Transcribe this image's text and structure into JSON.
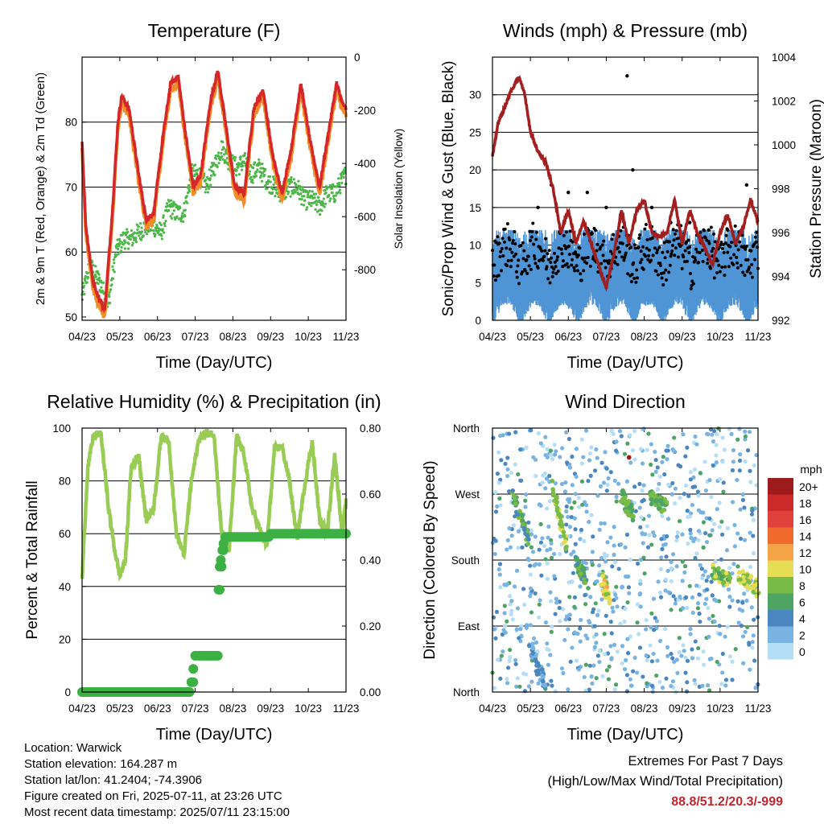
{
  "panels": {
    "temperature": {
      "title": "Temperature (F)",
      "ylabel_left": "2m & 9m T (Red, Orange) & 2m Td (Green)",
      "ylabel_right": "Solar Insolation (Yellow)",
      "xlabel": "Time (Day/UTC)"
    },
    "winds": {
      "title": "Winds (mph) & Pressure (mb)",
      "ylabel_left": "Sonic/Prop Wind & Gust (Blue, Black)",
      "ylabel_right": "Station Pressure (Maroon)",
      "xlabel": "Time (Day/UTC)"
    },
    "humidity": {
      "title": "Relative Humidity (%) & Precipitation (in)",
      "ylabel_left": "Percent & Total Rainfall",
      "xlabel": "Time (Day/UTC)"
    },
    "direction": {
      "title": "Wind Direction",
      "ylabel_left": "Direction (Colored By Speed)",
      "xlabel": "Time (Day/UTC)",
      "legend_title": "mph"
    }
  },
  "chart_data": [
    {
      "type": "line",
      "title": "Temperature (F)",
      "xlabel": "Time (Day/UTC)",
      "ylabel": "2m & 9m T (Red, Orange) & 2m Td (Green)",
      "y2label": "Solar Insolation (Yellow)",
      "x_ticks": [
        "04/23",
        "05/23",
        "06/23",
        "07/23",
        "08/23",
        "09/23",
        "10/23",
        "11/23"
      ],
      "ylim": [
        49.5,
        90
      ],
      "y_ticks": [
        50,
        60,
        70,
        80
      ],
      "y2lim": [
        -990,
        0
      ],
      "y2_ticks": [
        0,
        -200,
        -400,
        -600,
        -800
      ],
      "grid": true,
      "colors": {
        "t2m": "#d62728",
        "t9m": "#f28c28",
        "td2m": "#4cb648"
      },
      "series": [
        {
          "name": "2m T",
          "x": [
            0,
            0.1,
            0.3,
            0.6,
            0.8,
            0.95,
            1.05,
            1.25,
            1.5,
            1.7,
            1.9,
            2.15,
            2.35,
            2.55,
            2.75,
            2.95,
            3.15,
            3.4,
            3.6,
            3.8,
            4.05,
            4.3,
            4.55,
            4.8,
            5.05,
            5.3,
            5.55,
            5.8,
            6.05,
            6.3,
            6.55,
            6.75,
            6.9,
            7
          ],
          "y": [
            77,
            64,
            55,
            51,
            66,
            80,
            84,
            82,
            72,
            65,
            66,
            78,
            86,
            87,
            78,
            70,
            72,
            83,
            88,
            80,
            70,
            69,
            82,
            85,
            75,
            69,
            76,
            86,
            77,
            70,
            79,
            86,
            83,
            82
          ]
        },
        {
          "name": "2m Td",
          "x": [
            0,
            0.2,
            0.5,
            0.7,
            0.9,
            1.1,
            1.3,
            1.5,
            1.7,
            1.9,
            2.1,
            2.3,
            2.5,
            2.7,
            2.9,
            3.1,
            3.3,
            3.5,
            3.7,
            3.9,
            4.1,
            4.3,
            4.5,
            4.7,
            4.9,
            5.1,
            5.3,
            5.5,
            5.7,
            5.9,
            6.1,
            6.3,
            6.5,
            6.7,
            6.9,
            7
          ],
          "y": [
            53,
            58,
            55,
            52,
            60,
            62,
            62,
            63,
            64,
            64,
            63,
            67,
            66,
            66,
            72,
            72,
            70,
            73,
            76,
            74,
            73,
            74,
            72,
            73,
            71,
            70,
            69,
            70,
            70,
            68,
            68,
            67,
            69,
            69,
            71,
            72
          ]
        }
      ]
    },
    {
      "type": "line",
      "title": "Winds (mph) & Pressure (mb)",
      "xlabel": "Time (Day/UTC)",
      "ylabel": "Sonic/Prop Wind & Gust (Blue, Black)",
      "y2label": "Station Pressure (Maroon)",
      "x_ticks": [
        "04/23",
        "05/23",
        "06/23",
        "07/23",
        "08/23",
        "09/23",
        "10/23",
        "11/23"
      ],
      "ylim": [
        0,
        35
      ],
      "y_ticks": [
        0,
        5,
        10,
        15,
        20,
        25,
        30
      ],
      "y2lim": [
        992,
        1004
      ],
      "y2_ticks": [
        992,
        994,
        996,
        998,
        1000,
        1002,
        1004
      ],
      "grid": true,
      "colors": {
        "wind": "#4f94d4",
        "gust": "#000000",
        "pressure": "#a31f1f"
      },
      "series": [
        {
          "name": "Station Pressure",
          "x": [
            0,
            0.15,
            0.3,
            0.5,
            0.7,
            0.85,
            1.0,
            1.2,
            1.4,
            1.6,
            1.8,
            2.0,
            2.2,
            2.4,
            2.6,
            2.8,
            3.0,
            3.2,
            3.4,
            3.6,
            3.8,
            4.0,
            4.2,
            4.4,
            4.6,
            4.8,
            5.0,
            5.2,
            5.4,
            5.6,
            5.8,
            6.0,
            6.2,
            6.4,
            6.6,
            6.8,
            7.0
          ],
          "y": [
            999.5,
            1001,
            1001.6,
            1002.5,
            1003.1,
            1002.3,
            1000.6,
            999.7,
            999.2,
            998,
            996,
            997,
            995.5,
            996.5,
            995.5,
            994.5,
            993.5,
            995,
            997,
            995.5,
            997,
            997.5,
            996,
            995.8,
            996,
            997.5,
            995.5,
            997,
            996,
            995.3,
            994.5,
            996,
            996.8,
            995.5,
            996.2,
            997.5,
            996.5
          ]
        },
        {
          "name": "Gust peaks",
          "x": [
            1.2,
            1.55,
            2.0,
            2.5,
            3.0,
            3.55,
            3.7,
            4.2,
            4.7,
            5.2,
            5.7,
            6.2,
            6.7
          ],
          "y": [
            15,
            18,
            17,
            17,
            15,
            32.5,
            20,
            15,
            13,
            13,
            12,
            12,
            18
          ]
        }
      ]
    },
    {
      "type": "line",
      "title": "Relative Humidity (%) & Precipitation (in)",
      "xlabel": "Time (Day/UTC)",
      "ylabel": "Percent & Total Rainfall",
      "x_ticks": [
        "04/23",
        "05/23",
        "06/23",
        "07/23",
        "08/23",
        "09/23",
        "10/23",
        "11/23"
      ],
      "ylim": [
        0,
        100
      ],
      "y_ticks": [
        0,
        20,
        40,
        60,
        80,
        100
      ],
      "y2lim": [
        0,
        0.8
      ],
      "y2_ticks": [
        "0.00",
        "0.20",
        "0.40",
        "0.60",
        "0.80"
      ],
      "grid": true,
      "colors": {
        "rh": "#99cc55",
        "rain": "#3cb043"
      },
      "series": [
        {
          "name": "Relative Humidity",
          "x": [
            0,
            0.15,
            0.3,
            0.5,
            0.7,
            0.85,
            1.0,
            1.15,
            1.3,
            1.5,
            1.7,
            1.9,
            2.1,
            2.3,
            2.5,
            2.7,
            2.9,
            3.1,
            3.3,
            3.5,
            3.7,
            3.9,
            4.1,
            4.3,
            4.5,
            4.7,
            4.9,
            5.1,
            5.3,
            5.5,
            5.7,
            5.9,
            6.1,
            6.3,
            6.5,
            6.7,
            6.9,
            7
          ],
          "y": [
            43,
            85,
            97,
            98,
            70,
            55,
            44,
            50,
            85,
            90,
            65,
            70,
            97,
            95,
            60,
            52,
            80,
            96,
            98,
            98,
            60,
            54,
            97,
            90,
            70,
            62,
            55,
            92,
            93,
            80,
            58,
            78,
            95,
            65,
            60,
            90,
            60,
            72
          ]
        },
        {
          "name": "Total Rainfall",
          "x": [
            0,
            1.0,
            2.0,
            2.75,
            2.9,
            3.0,
            3.3,
            3.5,
            3.62,
            3.7,
            3.75,
            3.8,
            4.0,
            5.0,
            6.0,
            7.0
          ],
          "y": [
            0,
            0,
            0,
            0,
            0.03,
            0.11,
            0.11,
            0.11,
            0.31,
            0.38,
            0.43,
            0.47,
            0.47,
            0.48,
            0.48,
            0.48
          ]
        }
      ]
    },
    {
      "type": "scatter",
      "title": "Wind Direction",
      "xlabel": "Time (Day/UTC)",
      "ylabel": "Direction (Colored By Speed)",
      "x_ticks": [
        "04/23",
        "05/23",
        "06/23",
        "07/23",
        "08/23",
        "09/23",
        "10/23",
        "11/23"
      ],
      "y_ticks": [
        "North",
        "West",
        "South",
        "East",
        "North"
      ],
      "ylim": [
        0,
        360
      ],
      "grid": true,
      "legend": {
        "title": "mph",
        "labels": [
          "20+",
          "18",
          "16",
          "14",
          "12",
          "10",
          "8",
          "6",
          "4",
          "2",
          "0"
        ],
        "colors": [
          "#9e1b1b",
          "#cc2a2a",
          "#e0413a",
          "#ef6a2c",
          "#f5a347",
          "#e6dd55",
          "#79bb47",
          "#4da463",
          "#4a86c0",
          "#79b3e2",
          "#b4def5"
        ],
        "placement": "right"
      },
      "clusters": [
        {
          "x": [
            0.5,
            1.0
          ],
          "y": [
            275,
            200
          ],
          "speed": 6
        },
        {
          "x": [
            1.55,
            1.95
          ],
          "y": [
            285,
            200
          ],
          "speed": 9
        },
        {
          "x": [
            2.2,
            2.5
          ],
          "y": [
            180,
            150
          ],
          "speed": 6
        },
        {
          "x": [
            2.9,
            3.1
          ],
          "y": [
            155,
            120
          ],
          "speed": 10
        },
        {
          "x": [
            3.4,
            3.7
          ],
          "y": [
            270,
            240
          ],
          "speed": 7
        },
        {
          "x": [
            4.1,
            4.6
          ],
          "y": [
            270,
            250
          ],
          "speed": 7
        },
        {
          "x": [
            5.8,
            6.3
          ],
          "y": [
            165,
            150
          ],
          "speed": 8
        },
        {
          "x": [
            6.5,
            7.0
          ],
          "y": [
            160,
            140
          ],
          "speed": 9
        },
        {
          "x": [
            3.6
          ],
          "y": [
            320
          ],
          "speed": 20
        },
        {
          "x": [
            1.0,
            1.4
          ],
          "y": [
            60,
            10
          ],
          "speed": 3
        }
      ]
    }
  ],
  "station_info": {
    "location": "Location: Warwick",
    "elevation": "Station elevation: 164.287 m",
    "latlon": "Station lat/lon: 41.2404; -74.3906",
    "created": "Figure created on Fri, 2025-07-11, at 23:26 UTC",
    "timestamp": "Most recent data timestamp: 2025/07/11 23:15:00"
  },
  "extremes": {
    "line1": "Extremes For Past 7 Days",
    "line2": "(High/Low/Max Wind/Total Precipitation)",
    "values": "88.8/51.2/20.3/-999"
  }
}
